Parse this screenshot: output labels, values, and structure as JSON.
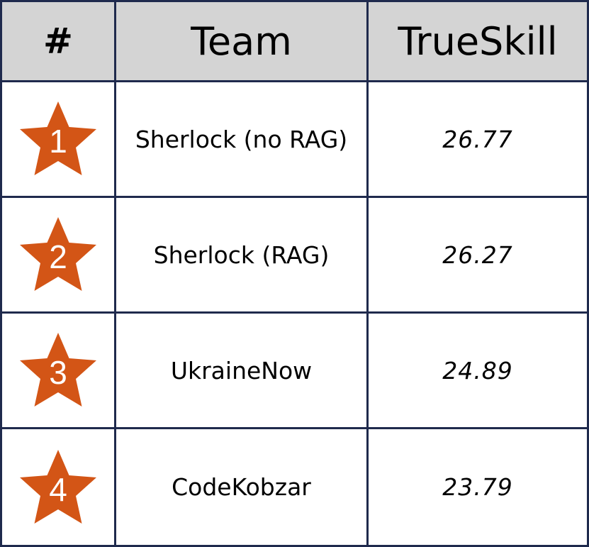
{
  "colors": {
    "border": "#1f2a4d",
    "header_bg": "#d4d4d4",
    "star": "#d35516"
  },
  "table": {
    "headers": [
      "#",
      "Team",
      "TrueSkill"
    ],
    "rows": [
      {
        "rank": "1",
        "icon": "star-icon",
        "team": "Sherlock (no RAG)",
        "trueskill": "26.77"
      },
      {
        "rank": "2",
        "icon": "star-icon",
        "team": "Sherlock (RAG)",
        "trueskill": "26.27"
      },
      {
        "rank": "3",
        "icon": "star-icon",
        "team": "UkraineNow",
        "trueskill": "24.89"
      },
      {
        "rank": "4",
        "icon": "star-icon",
        "team": "CodeKobzar",
        "trueskill": "23.79"
      }
    ]
  }
}
